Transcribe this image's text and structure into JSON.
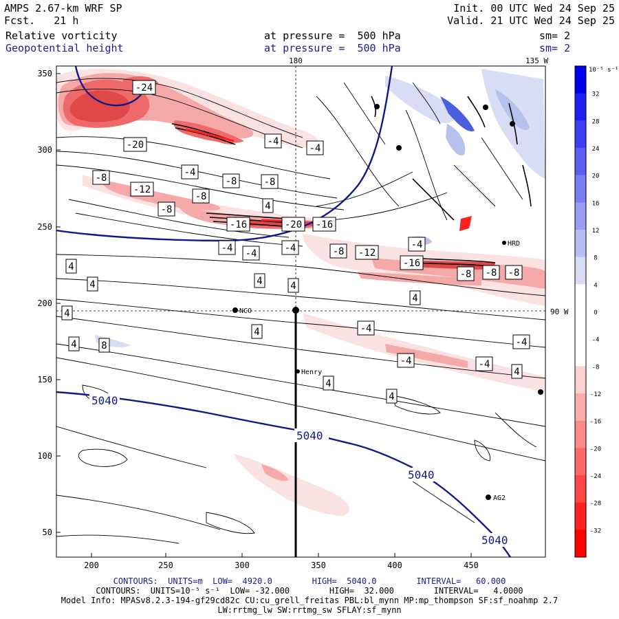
{
  "header": {
    "model": "AMPS 2.67-km WRF SP",
    "forecast": "Fcst.   21 h",
    "init": "Init. 00 UTC Wed 24 Sep 25",
    "valid": "Valid. 21 UTC Wed 24 Sep 25",
    "field1": {
      "name": "Relative vorticity",
      "level": "at pressure =  500 hPa",
      "smooth": "sm= 2"
    },
    "field2": {
      "name": "Geopotential height",
      "level": "at pressure =  500 hPa",
      "smooth": "sm= 2"
    },
    "lon_180": "180",
    "lon_135w": "135 W",
    "lon_90w": "90 W"
  },
  "axes": {
    "x_ticks": [
      "200",
      "250",
      "300",
      "350",
      "400",
      "450"
    ],
    "y_ticks": [
      "350",
      "300",
      "250",
      "200",
      "150",
      "100",
      "50"
    ]
  },
  "colorbar": {
    "unit": "10⁻⁵ s⁻¹",
    "labels": [
      "32",
      "28",
      "24",
      "20",
      "16",
      "12",
      "8",
      "4",
      "0",
      "-4",
      "-8",
      "-12",
      "-16",
      "-20",
      "-24",
      "-28",
      "-32"
    ],
    "colors": {
      "pos_strong": "#0000ee",
      "pos_weak": "#d8dcf4",
      "neg_weak": "#fbe2e2",
      "neg_strong": "#ff0000"
    }
  },
  "stations": [
    {
      "name": "NCO"
    },
    {
      "name": "Henry"
    },
    {
      "name": "AG2"
    },
    {
      "name": "HRD"
    }
  ],
  "height_contours": [
    "5040",
    "5040",
    "5040",
    "5040"
  ],
  "vort_labels": [
    "-24",
    "-20",
    "-4",
    "-4",
    "-4",
    "-8",
    "-8",
    "-12",
    "-8",
    "-8",
    "-8",
    "4",
    "-16",
    "-20",
    "-16",
    "-4",
    "-4",
    "-8",
    "-12",
    "-16",
    "-8",
    "-8",
    "-8",
    "4",
    "4",
    "-4",
    "-4",
    "-4",
    "-4",
    "8",
    "4",
    "4",
    "4",
    "-4",
    "4",
    "4",
    "4",
    "4",
    "-4",
    "4",
    "4"
  ],
  "footer": {
    "line1": "CONTOURS:  UNITS=m  LOW=  4920.0        HIGH=  5040.0        INTERVAL=   60.000",
    "line2": "CONTOURS:  UNITS=10⁻⁵ s⁻¹  LOW= -32.000        HIGH=  32.000        INTERVAL=   4.0000",
    "line3": "Model Info: MPASv8.2.3-194-gf29cd82c CU:cu_grell_freitas PBL:bl_mynn MP:mp_thompson SF:sf_noahmp 2.7",
    "line4": "LW:rrtmg_lw SW:rrtmg_sw SFLAY:sf_mynn"
  }
}
